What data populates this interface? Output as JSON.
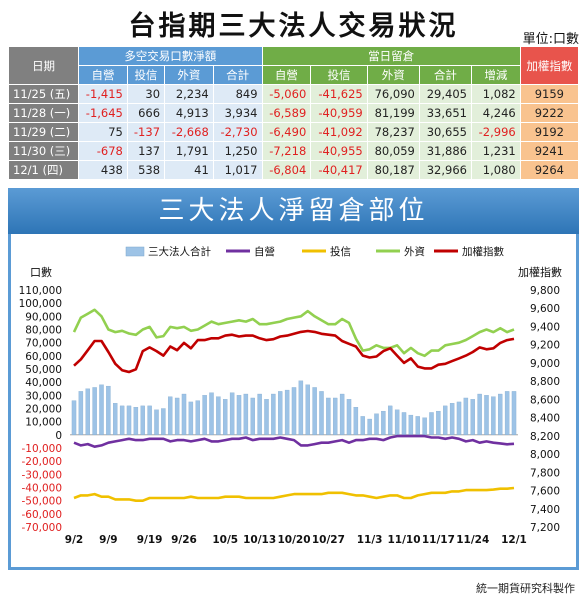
{
  "title": "台指期三大法人交易狀況",
  "unit_label": "單位:口數",
  "table": {
    "date_header": "日期",
    "group1_header": "多空交易口數淨額",
    "group2_header": "當日留倉",
    "index_header": "加權指數",
    "sub_headers1": [
      "自營",
      "投信",
      "外資",
      "合計"
    ],
    "sub_headers2": [
      "自營",
      "投信",
      "外資",
      "合計",
      "增減"
    ],
    "rows": [
      {
        "date": "11/25 (五)",
        "g1": [
          "-1,415",
          "30",
          "2,234",
          "849"
        ],
        "g2": [
          "-5,060",
          "-41,625",
          "76,090",
          "29,405",
          "1,082"
        ],
        "idx": "9159"
      },
      {
        "date": "11/28 (一)",
        "g1": [
          "-1,645",
          "666",
          "4,913",
          "3,934"
        ],
        "g2": [
          "-6,589",
          "-40,959",
          "81,199",
          "33,651",
          "4,246"
        ],
        "idx": "9222"
      },
      {
        "date": "11/29 (二)",
        "g1": [
          "75",
          "-137",
          "-2,668",
          "-2,730"
        ],
        "g2": [
          "-6,490",
          "-41,092",
          "78,237",
          "30,655",
          "-2,996"
        ],
        "idx": "9192"
      },
      {
        "date": "11/30 (三)",
        "g1": [
          "-678",
          "137",
          "1,791",
          "1,250"
        ],
        "g2": [
          "-7,218",
          "-40,955",
          "80,059",
          "31,886",
          "1,231"
        ],
        "idx": "9241"
      },
      {
        "date": "12/1  (四)",
        "g1": [
          "438",
          "538",
          "41",
          "1,017"
        ],
        "g2": [
          "-6,804",
          "-40,417",
          "80,187",
          "32,966",
          "1,080"
        ],
        "idx": "9264"
      }
    ]
  },
  "chart_banner": "三大法人淨留倉部位",
  "footer": "統一期貨研究科製作",
  "chart_data": {
    "type": "bar",
    "title": "三大法人淨留倉部位",
    "ylabel_left": "口數",
    "ylabel_right": "加權指數",
    "ylim_left": [
      -70000,
      110000
    ],
    "ylim_right": [
      7200,
      9800
    ],
    "yticks_left": [
      "110,000",
      "100,000",
      "90,000",
      "80,000",
      "70,000",
      "60,000",
      "50,000",
      "40,000",
      "30,000",
      "20,000",
      "10,000",
      "0",
      "-10,000",
      "-20,000",
      "-30,000",
      "-40,000",
      "-50,000",
      "-60,000",
      "-70,000"
    ],
    "yticks_right": [
      "9,800",
      "9,600",
      "9,400",
      "9,200",
      "9,000",
      "8,800",
      "8,600",
      "8,400",
      "8,200",
      "8,000",
      "7,800",
      "7,600",
      "7,400",
      "7,200"
    ],
    "xticks": [
      "9/2",
      "9/9",
      "9/19",
      "9/26",
      "10/5",
      "10/13",
      "10/20",
      "10/27",
      "11/3",
      "11/10",
      "11/17",
      "11/24",
      "12/1"
    ],
    "legend": [
      "三大法人合計",
      "自營",
      "投信",
      "外資",
      "加權指數"
    ],
    "colors": {
      "total": "#9dc3e6",
      "dealer": "#7030a0",
      "trust": "#f0c000",
      "foreign": "#92d050",
      "index": "#c00000"
    },
    "n": 65,
    "xtick_pos": [
      0,
      5,
      11,
      16,
      22,
      27,
      32,
      37,
      43,
      48,
      53,
      58,
      64
    ],
    "total": [
      26000,
      33000,
      35000,
      36000,
      38000,
      37000,
      24000,
      22000,
      22000,
      21000,
      22000,
      22000,
      19000,
      20000,
      29000,
      28000,
      31000,
      25000,
      26000,
      30000,
      32000,
      29000,
      27000,
      32000,
      30000,
      31000,
      28000,
      31000,
      27000,
      31000,
      33000,
      34000,
      36000,
      41000,
      38000,
      36000,
      33000,
      28000,
      28000,
      31000,
      27000,
      21000,
      14000,
      12000,
      16000,
      18000,
      22000,
      19000,
      17000,
      15000,
      14000,
      13000,
      17000,
      18000,
      22000,
      24000,
      25000,
      28000,
      27000,
      31000,
      30000,
      29000,
      31000,
      33000,
      33000
    ],
    "dealer": [
      -6000,
      -8000,
      -7000,
      -9000,
      -8000,
      -6000,
      -5000,
      -4000,
      -3000,
      -4000,
      -4000,
      -3000,
      -3000,
      -3000,
      -5000,
      -4000,
      -4000,
      -5000,
      -4000,
      -3000,
      -5000,
      -5000,
      -4000,
      -3000,
      -3000,
      -2000,
      -4000,
      -3000,
      -3000,
      -3000,
      -2000,
      -3000,
      -4000,
      -8000,
      -8000,
      -7000,
      -6000,
      -6000,
      -5000,
      -4000,
      -6000,
      -4000,
      -4000,
      -3000,
      -3000,
      -4000,
      -2000,
      -1000,
      -1000,
      -1000,
      -1000,
      -1000,
      -2000,
      -2000,
      -3000,
      -2000,
      -3000,
      -5000,
      -4000,
      -6000,
      -5000,
      -6000,
      -6500,
      -7200,
      -6800
    ],
    "trust": [
      -48000,
      -46000,
      -46000,
      -45000,
      -47000,
      -47000,
      -49000,
      -49000,
      -49000,
      -50000,
      -50000,
      -48000,
      -48000,
      -48000,
      -48000,
      -48000,
      -48000,
      -47000,
      -48000,
      -48000,
      -48000,
      -48000,
      -47000,
      -47000,
      -47000,
      -48000,
      -48000,
      -48000,
      -48000,
      -48000,
      -47000,
      -46000,
      -45000,
      -45000,
      -45000,
      -45000,
      -45000,
      -44000,
      -44000,
      -44000,
      -45000,
      -46000,
      -46000,
      -47000,
      -48000,
      -47000,
      -46000,
      -46000,
      -48000,
      -48000,
      -46000,
      -45000,
      -44000,
      -44000,
      -44000,
      -43000,
      -43000,
      -42000,
      -42000,
      -42000,
      -42000,
      -41600,
      -40900,
      -40900,
      -40400
    ],
    "foreign": [
      78000,
      89000,
      92000,
      95000,
      90000,
      80000,
      78000,
      79000,
      77000,
      76000,
      80000,
      82000,
      74000,
      75000,
      82000,
      81000,
      82000,
      79000,
      80000,
      83000,
      86000,
      84000,
      85000,
      86000,
      87000,
      86000,
      88000,
      84000,
      84000,
      85000,
      86000,
      88000,
      89000,
      90000,
      94000,
      90000,
      87000,
      84000,
      84000,
      88000,
      85000,
      73000,
      64000,
      65000,
      68000,
      66000,
      66000,
      68000,
      62000,
      66000,
      62000,
      60000,
      64000,
      64000,
      68000,
      69000,
      70000,
      72000,
      75000,
      78000,
      80000,
      78000,
      81000,
      78000,
      80000
    ],
    "index": [
      8970,
      9040,
      9140,
      9240,
      9240,
      9120,
      8990,
      8920,
      8900,
      8930,
      9130,
      9170,
      9130,
      9080,
      9180,
      9140,
      9220,
      9160,
      9250,
      9250,
      9270,
      9270,
      9300,
      9310,
      9290,
      9300,
      9300,
      9270,
      9250,
      9260,
      9290,
      9300,
      9320,
      9340,
      9350,
      9340,
      9320,
      9310,
      9300,
      9240,
      9210,
      9180,
      9080,
      9060,
      9070,
      9130,
      9160,
      9080,
      9000,
      9050,
      8960,
      8940,
      8940,
      8980,
      8990,
      9020,
      9050,
      9080,
      9120,
      9170,
      9150,
      9160,
      9220,
      9250,
      9264
    ]
  }
}
